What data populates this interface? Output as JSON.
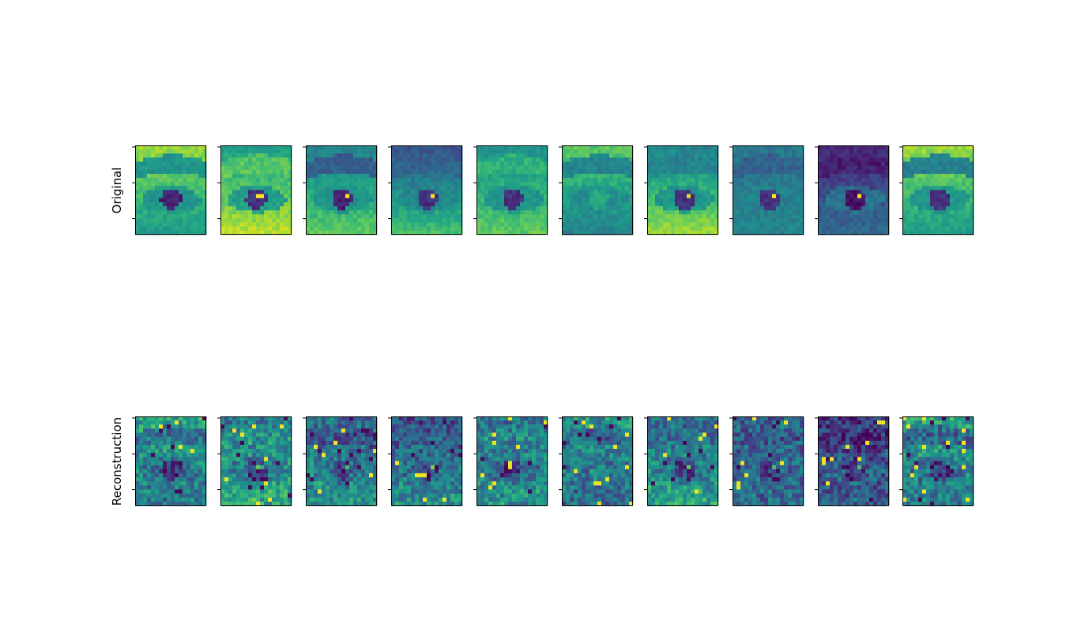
{
  "figure": {
    "rows": [
      {
        "label": "Original",
        "kind": "original"
      },
      {
        "label": "Reconstruction",
        "kind": "reconstruction"
      }
    ],
    "columns": 10,
    "background": "#ffffff"
  },
  "chart_data": {
    "type": "heatmap",
    "colormap": "viridis",
    "image_grid": {
      "rows": 2,
      "cols": 10,
      "pixels_wide": 18,
      "pixels_high": 22
    },
    "row_labels": [
      "Original",
      "Reconstruction"
    ],
    "xticks": [],
    "ytick_labels": [],
    "ytick_count": 3,
    "samples": [
      {
        "variant": 0,
        "brow": 0.35,
        "eye": 0.1,
        "bright_top": 0.85,
        "bright_bottom": 0.55,
        "catch_light": false
      },
      {
        "variant": 1,
        "brow": 0.8,
        "eye": 0.15,
        "bright_top": 0.55,
        "bright_bottom": 0.9,
        "catch_light": true
      },
      {
        "variant": 2,
        "brow": 0.15,
        "eye": 0.1,
        "bright_top": 0.45,
        "bright_bottom": 0.75,
        "catch_light": true
      },
      {
        "variant": 3,
        "brow": 0.3,
        "eye": 0.15,
        "bright_top": 0.25,
        "bright_bottom": 0.7,
        "catch_light": true
      },
      {
        "variant": 4,
        "brow": 0.7,
        "eye": 0.15,
        "bright_top": 0.5,
        "bright_bottom": 0.75,
        "catch_light": false
      },
      {
        "variant": 5,
        "brow": 0.3,
        "eye": 0.6,
        "bright_top": 0.75,
        "bright_bottom": 0.45,
        "catch_light": false
      },
      {
        "variant": 6,
        "brow": 0.4,
        "eye": 0.15,
        "bright_top": 0.45,
        "bright_bottom": 0.85,
        "catch_light": true
      },
      {
        "variant": 7,
        "brow": 0.25,
        "eye": 0.15,
        "bright_top": 0.4,
        "bright_bottom": 0.45,
        "catch_light": true
      },
      {
        "variant": 8,
        "brow": 0.05,
        "eye": 0.05,
        "bright_top": 0.1,
        "bright_bottom": 0.35,
        "catch_light": true
      },
      {
        "variant": 9,
        "brow": 0.2,
        "eye": 0.15,
        "bright_top": 0.85,
        "bright_bottom": 0.55,
        "catch_light": false
      }
    ]
  }
}
